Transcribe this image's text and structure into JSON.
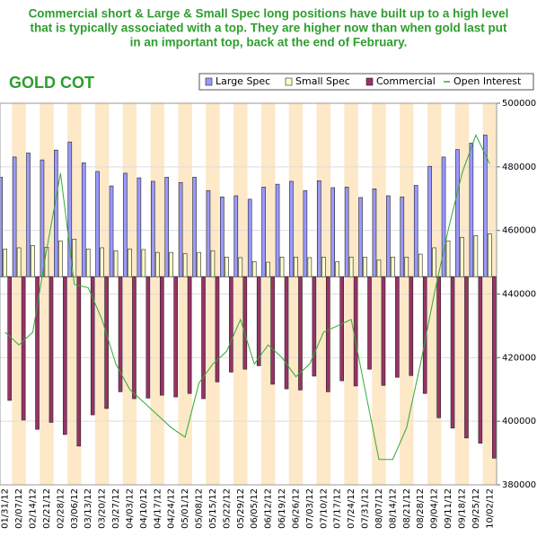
{
  "chart_data": {
    "type": "bar",
    "annotation": [
      "Commercial short & Large & Small Spec long positions have built up to a high level",
      "that is typically associated with a top. They are higher now than when gold last put",
      "in an important top, back at the end of February."
    ],
    "title": "GOLD COT",
    "categories": [
      "01/31/12",
      "02/07/12",
      "02/14/12",
      "02/21/12",
      "02/28/12",
      "03/06/12",
      "03/13/12",
      "03/20/12",
      "03/27/12",
      "04/03/12",
      "04/10/12",
      "04/17/12",
      "04/24/12",
      "05/01/12",
      "05/08/12",
      "05/15/12",
      "05/22/12",
      "05/29/12",
      "06/05/12",
      "06/12/12",
      "06/19/12",
      "06/26/12",
      "07/03/12",
      "07/10/12",
      "07/17/12",
      "07/24/12",
      "07/31/12",
      "08/07/12",
      "08/14/12",
      "08/21/12",
      "08/28/12",
      "09/04/12",
      "09/11/12",
      "09/18/12",
      "09/25/12",
      "10/02/12"
    ],
    "ylim": [
      -360000,
      300000
    ],
    "y2lim": [
      380000,
      500000
    ],
    "y2ticks": [
      380000,
      400000,
      420000,
      440000,
      460000,
      480000,
      500000
    ],
    "grid": true,
    "legend": "top-right",
    "series": [
      {
        "name": "Large Spec",
        "color": "#9999ff",
        "values": [
          172000,
          207000,
          214000,
          202000,
          219000,
          233000,
          197000,
          182000,
          157000,
          179000,
          171000,
          165000,
          172000,
          163000,
          172000,
          149000,
          138000,
          140000,
          134000,
          155000,
          160000,
          165000,
          149000,
          166000,
          154000,
          155000,
          137000,
          152000,
          140000,
          138000,
          158000,
          191000,
          207000,
          220000,
          231000,
          245000
        ]
      },
      {
        "name": "Small Spec",
        "color": "#ffffcc",
        "values": [
          48000,
          50000,
          54000,
          51000,
          62000,
          65000,
          48000,
          50000,
          45000,
          48000,
          47000,
          42000,
          42000,
          40000,
          42000,
          45000,
          34000,
          33000,
          26000,
          25000,
          34000,
          34000,
          33000,
          34000,
          26000,
          34000,
          34000,
          29000,
          34000,
          34000,
          39000,
          50000,
          62000,
          68000,
          71000,
          74000
        ]
      },
      {
        "name": "Commercial",
        "color": "#993366",
        "values": [
          -214000,
          -248000,
          -264000,
          -252000,
          -273000,
          -293000,
          -239000,
          -228000,
          -199000,
          -211000,
          -210000,
          -205000,
          -208000,
          -202000,
          -211000,
          -182000,
          -165000,
          -160000,
          -154000,
          -186000,
          -194000,
          -196000,
          -172000,
          -199000,
          -180000,
          -189000,
          -160000,
          -188000,
          -174000,
          -171000,
          -202000,
          -244000,
          -262000,
          -279000,
          -288000,
          -314000
        ]
      },
      {
        "name": "Open Interest",
        "color": "#33aa33",
        "axis": "y2",
        "type": "line",
        "values": [
          428000,
          424000,
          428000,
          454000,
          478000,
          443000,
          442000,
          432000,
          418000,
          410000,
          406000,
          402000,
          398000,
          395000,
          412000,
          418000,
          422000,
          432000,
          418000,
          424000,
          420000,
          414000,
          418000,
          428000,
          430000,
          432000,
          410000,
          388000,
          388000,
          398000,
          418000,
          440000,
          460000,
          478000,
          490000,
          481000
        ]
      }
    ]
  }
}
